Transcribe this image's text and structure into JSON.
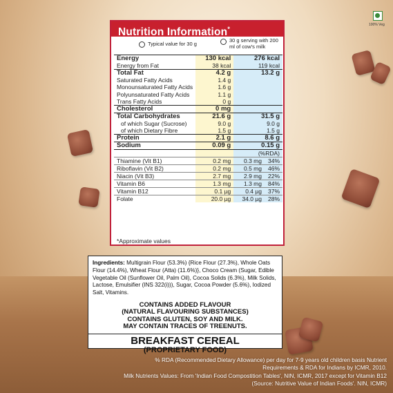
{
  "veg_label": "100% Veg",
  "nutrition": {
    "title": "Nutrition Information",
    "title_mark": "*",
    "serving_1": "Typical value for 30 g",
    "serving_2": "30 g serving with 200 ml of cow's milk",
    "rows": {
      "energy": {
        "label": "Energy",
        "v1": "130 kcal",
        "v2": "276 kcal"
      },
      "energy_fat": {
        "label": "Energy from Fat",
        "v1": "38 kcal",
        "v2": "119 kcal"
      },
      "total_fat": {
        "label": "Total Fat",
        "v1": "4.2 g",
        "v2": "13.2 g"
      },
      "sat_fat": {
        "label": "Saturated Fatty Acids",
        "v1": "1.4 g"
      },
      "mono_fat": {
        "label": "Monounsaturated Fatty Acids",
        "v1": "1.6 g"
      },
      "poly_fat": {
        "label": "Polyunsaturated Fatty Acids",
        "v1": "1.1 g"
      },
      "trans_fat": {
        "label": "Trans Fatty Acids",
        "v1": "0 g"
      },
      "cholesterol": {
        "label": "Cholesterol",
        "v1": "0 mg"
      },
      "carbs": {
        "label": "Total Carbohydrates",
        "v1": "21.6 g",
        "v2": "31.5 g"
      },
      "sugar": {
        "label": "of which Sugar (Sucrose)",
        "v1": "9.0 g",
        "v2": "9.0 g"
      },
      "fibre": {
        "label": "of which Dietary Fibre",
        "v1": "1.5 g",
        "v2": "1.5 g"
      },
      "protein": {
        "label": "Protein",
        "v1": "2.1 g",
        "v2": "8.6 g"
      },
      "sodium": {
        "label": "Sodium",
        "v1": "0.09 g",
        "v2": "0.15 g"
      }
    },
    "rda_header": "(%RDA)",
    "vitamins": [
      {
        "label": "Thiamine (Vit B1)",
        "v1": "0.2 mg",
        "v2": "0.3 mg",
        "pct": "34%"
      },
      {
        "label": "Riboflavin (Vit B2)",
        "v1": "0.2 mg",
        "v2": "0.5 mg",
        "pct": "46%"
      },
      {
        "label": "Niacin (Vit B3)",
        "v1": "2.7 mg",
        "v2": "2.9 mg",
        "pct": "22%"
      },
      {
        "label": "Vitamin B6",
        "v1": "1.3 mg",
        "v2": "1.3 mg",
        "pct": "84%"
      },
      {
        "label": "Vitamin B12",
        "v1": "0.1 µg",
        "v2": "0.4 µg",
        "pct": "37%"
      },
      {
        "label": "Folate",
        "v1": "20.0 µg",
        "v2": "34.0 µg",
        "pct": "28%"
      }
    ],
    "approx_note": "*Approximate values"
  },
  "ingredients": {
    "heading": "Ingredients:",
    "text": " Multigrain Flour (53.3%) {Rice Flour (27.3%), Whole Oats Flour (14.4%), Wheat Flour (Atta) (11.6%)}, Choco Cream (Sugar, Edible Vegetable Oil (Sunflower Oil, Palm Oil), Cocoa Solids (6.3%), Milk Solids, Lactose, Emulsifier (INS 322(i))), Sugar, Cocoa Powder (5.6%), Iodized Salt, Vitamins.",
    "allergen_lines": [
      "CONTAINS ADDED FLAVOUR",
      "(NATURAL FLAVOURING SUBSTANCES)",
      "CONTAINS GLUTEN, SOY AND MILK.",
      "MAY CONTAIN TRACES OF TREENUTS."
    ],
    "cereal_type": "BREAKFAST CEREAL",
    "cereal_subtype": "(PROPRIETARY FOOD)"
  },
  "footnotes": {
    "rda_line1": "% RDA (Recommended Dietary Allowance) per day for 7-9 years old children basis Nutrient",
    "rda_line2": "Requirements & RDA for Indians by ICMR, 2010.",
    "milk_line1": "Milk Nutrients Values: From 'Indian Food Compostition Tables', NIN, ICMR, 2017 except for Vitamin B12",
    "milk_line2": "(Source: Nutritive Value of Indian Foods'. NIN, ICMR)"
  }
}
